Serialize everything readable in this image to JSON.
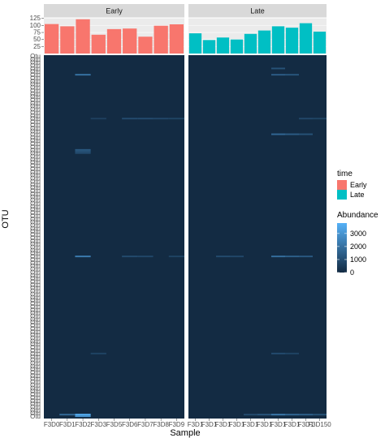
{
  "chart_data": [
    {
      "type": "bar",
      "panel": "top",
      "facets": [
        "Early",
        "Late"
      ],
      "yticks": [
        25,
        50,
        75,
        100,
        125
      ],
      "ylim": [
        0,
        130
      ],
      "series": [
        {
          "name": "Early",
          "color": "#F8766D",
          "values": [
            105,
            97,
            122,
            67,
            87,
            89,
            60,
            99,
            104
          ]
        },
        {
          "name": "Late",
          "color": "#00BFC4",
          "values": [
            72,
            48,
            57,
            50,
            70,
            82,
            97,
            92,
            108,
            78
          ]
        }
      ],
      "legend_title": "time"
    },
    {
      "type": "heatmap",
      "panel": "bottom",
      "xlabel": "Sample",
      "ylabel": "OTU",
      "x_tick_labels_early": [
        "F3D0",
        "F3D1",
        "F3D2",
        "F3D3",
        "F3D5",
        "F3D6",
        "F3D7",
        "F3D8",
        "F3D9"
      ],
      "x_tick_labels_late": [
        "F3D1",
        "F3D1",
        "F3D1",
        "F3D1",
        "F3D1",
        "F3D1",
        "F3D1",
        "F3D1",
        "F3D1",
        "F3D150"
      ],
      "n_otus": 232,
      "fill_base": "#132B43",
      "fill_high": "#56B1F7",
      "colorbar_title": "Abundance",
      "colorbar_ticks": [
        0,
        1000,
        2000,
        3000
      ],
      "colorbar_max": 3800,
      "highlights": [
        {
          "facet": "early",
          "col": 2,
          "row": 12,
          "value": 2000
        },
        {
          "facet": "early",
          "col": 2,
          "row": 60,
          "value": 1300
        },
        {
          "facet": "early",
          "col": 2,
          "row": 61,
          "value": 1100
        },
        {
          "facet": "early",
          "col": 2,
          "row": 62,
          "value": 900
        },
        {
          "facet": "early",
          "col": 2,
          "row": 128,
          "value": 2300
        },
        {
          "facet": "early",
          "col": 2,
          "row": 229,
          "value": 3800
        },
        {
          "facet": "early",
          "col": 2,
          "row": 230,
          "value": 3000
        },
        {
          "facet": "early",
          "col": 1,
          "row": 229,
          "value": 1800
        },
        {
          "facet": "early",
          "col": 5,
          "row": 40,
          "value": 900
        },
        {
          "facet": "early",
          "col": 6,
          "row": 40,
          "value": 900
        },
        {
          "facet": "early",
          "col": 7,
          "row": 40,
          "value": 800
        },
        {
          "facet": "early",
          "col": 8,
          "row": 40,
          "value": 700
        },
        {
          "facet": "early",
          "col": 5,
          "row": 128,
          "value": 900
        },
        {
          "facet": "early",
          "col": 6,
          "row": 128,
          "value": 800
        },
        {
          "facet": "early",
          "col": 8,
          "row": 128,
          "value": 700
        },
        {
          "facet": "early",
          "col": 3,
          "row": 40,
          "value": 600
        },
        {
          "facet": "early",
          "col": 3,
          "row": 190,
          "value": 700
        },
        {
          "facet": "late",
          "col": 6,
          "row": 8,
          "value": 1100
        },
        {
          "facet": "late",
          "col": 6,
          "row": 12,
          "value": 1400
        },
        {
          "facet": "late",
          "col": 7,
          "row": 12,
          "value": 1200
        },
        {
          "facet": "late",
          "col": 6,
          "row": 50,
          "value": 1700
        },
        {
          "facet": "late",
          "col": 7,
          "row": 50,
          "value": 1400
        },
        {
          "facet": "late",
          "col": 8,
          "row": 50,
          "value": 1100
        },
        {
          "facet": "late",
          "col": 6,
          "row": 128,
          "value": 1900
        },
        {
          "facet": "late",
          "col": 7,
          "row": 128,
          "value": 1500
        },
        {
          "facet": "late",
          "col": 8,
          "row": 128,
          "value": 1300
        },
        {
          "facet": "late",
          "col": 6,
          "row": 229,
          "value": 2200
        },
        {
          "facet": "late",
          "col": 7,
          "row": 229,
          "value": 1700
        },
        {
          "facet": "late",
          "col": 8,
          "row": 229,
          "value": 1500
        },
        {
          "facet": "late",
          "col": 5,
          "row": 229,
          "value": 1200
        },
        {
          "facet": "late",
          "col": 9,
          "row": 229,
          "value": 1100
        },
        {
          "facet": "late",
          "col": 4,
          "row": 229,
          "value": 900
        },
        {
          "facet": "late",
          "col": 6,
          "row": 190,
          "value": 900
        },
        {
          "facet": "late",
          "col": 7,
          "row": 190,
          "value": 700
        },
        {
          "facet": "late",
          "col": 8,
          "row": 40,
          "value": 800
        },
        {
          "facet": "late",
          "col": 9,
          "row": 40,
          "value": 700
        },
        {
          "facet": "late",
          "col": 2,
          "row": 128,
          "value": 900
        },
        {
          "facet": "late",
          "col": 3,
          "row": 128,
          "value": 800
        }
      ]
    }
  ],
  "otu_tick_label": "Otu"
}
